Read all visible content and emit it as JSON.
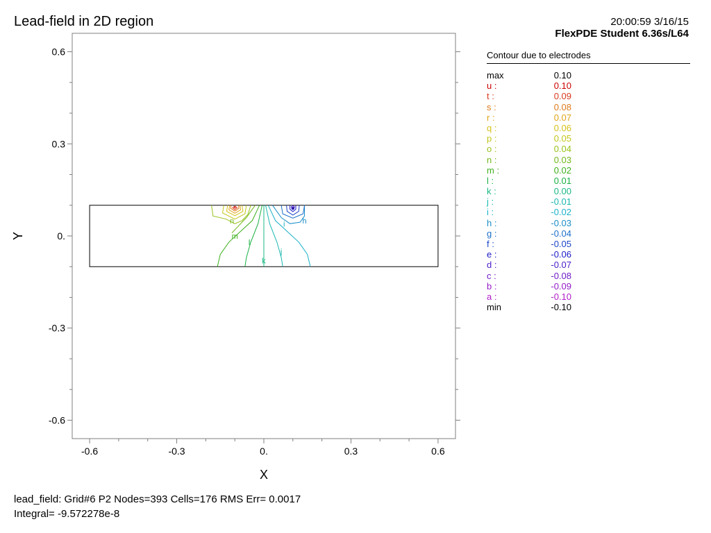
{
  "header": {
    "title": "Lead-field in 2D region",
    "timestamp": "20:00:59 3/16/15",
    "software": "FlexPDE Student 6.36s/L64"
  },
  "legend": {
    "title": "Contour due to electrodes",
    "rows": [
      {
        "label": "max",
        "value": "0.10",
        "color": "#000000"
      },
      {
        "label": "u :",
        "value": "0.10",
        "color": "#cc0000"
      },
      {
        "label": "t :",
        "value": "0.09",
        "color": "#d83a1e"
      },
      {
        "label": "s :",
        "value": "0.08",
        "color": "#dd7a1a"
      },
      {
        "label": "r :",
        "value": "0.07",
        "color": "#e0a419"
      },
      {
        "label": "q :",
        "value": "0.06",
        "color": "#d4c21a"
      },
      {
        "label": "p :",
        "value": "0.05",
        "color": "#c2c61a"
      },
      {
        "label": "o :",
        "value": "0.04",
        "color": "#98c21a"
      },
      {
        "label": "n :",
        "value": "0.03",
        "color": "#72b81a"
      },
      {
        "label": "m :",
        "value": "0.02",
        "color": "#3cb01c"
      },
      {
        "label": "l :",
        "value": "0.01",
        "color": "#18b040"
      },
      {
        "label": "k :",
        "value": "0.00",
        "color": "#1ab884"
      },
      {
        "label": "j :",
        "value": "-0.01",
        "color": "#1ab8b0"
      },
      {
        "label": "i :",
        "value": "-0.02",
        "color": "#1ab0c8"
      },
      {
        "label": "h :",
        "value": "-0.03",
        "color": "#1a8ec8"
      },
      {
        "label": "g :",
        "value": "-0.04",
        "color": "#1a6ec8"
      },
      {
        "label": "f :",
        "value": "-0.05",
        "color": "#1a44c8"
      },
      {
        "label": "e :",
        "value": "-0.06",
        "color": "#1a1ac8"
      },
      {
        "label": "d :",
        "value": "-0.07",
        "color": "#4a1ac8"
      },
      {
        "label": "c :",
        "value": "-0.08",
        "color": "#6e1ac8"
      },
      {
        "label": "b :",
        "value": "-0.09",
        "color": "#941ac8"
      },
      {
        "label": "a :",
        "value": "-0.10",
        "color": "#b01ac8"
      },
      {
        "label": "min",
        "value": "-0.10",
        "color": "#000000"
      }
    ]
  },
  "footer": {
    "line1": "lead_field:  Grid#6  P2  Nodes=393 Cells=176 RMS Err= 0.0017",
    "line2": "Integral= -9.572278e-8"
  },
  "chart_data": {
    "type": "contour",
    "xlabel": "X",
    "ylabel": "Y",
    "xlim": [
      -0.66,
      0.66
    ],
    "ylim": [
      -0.66,
      0.66
    ],
    "xticks": [
      -0.6,
      -0.3,
      0.0,
      0.3,
      0.6
    ],
    "yticks": [
      0.6,
      0.3,
      0.0,
      -0.3,
      -0.6
    ],
    "xtick_labels": [
      "-0.6",
      "-0.3",
      "0.",
      "0.3",
      "0.6"
    ],
    "ytick_labels": [
      "0.6",
      "0.3",
      "0.",
      "-0.3",
      "-0.6"
    ],
    "domain_rect": {
      "x": [
        -0.6,
        0.6
      ],
      "y": [
        -0.1,
        0.1
      ]
    },
    "sources": [
      {
        "x": -0.1,
        "y": 0.09,
        "sign": "positive",
        "value": 0.1
      },
      {
        "x": 0.1,
        "y": 0.09,
        "sign": "negative",
        "value": -0.1
      }
    ],
    "contours": [
      {
        "level": "t",
        "value": 0.09,
        "color": "#d83a1e",
        "points": [
          [
            -0.108,
            0.092
          ],
          [
            -0.1,
            0.097
          ],
          [
            -0.092,
            0.092
          ],
          [
            -0.1,
            0.086
          ],
          [
            -0.108,
            0.092
          ]
        ]
      },
      {
        "level": "s",
        "value": 0.08,
        "color": "#dd7a1a",
        "points": [
          [
            -0.113,
            0.1
          ],
          [
            -0.114,
            0.09
          ],
          [
            -0.1,
            0.081
          ],
          [
            -0.086,
            0.09
          ],
          [
            -0.087,
            0.1
          ]
        ]
      },
      {
        "level": "r",
        "value": 0.07,
        "color": "#e0a419",
        "points": [
          [
            -0.118,
            0.1
          ],
          [
            -0.12,
            0.085
          ],
          [
            -0.1,
            0.074
          ],
          [
            -0.08,
            0.085
          ],
          [
            -0.082,
            0.1
          ]
        ]
      },
      {
        "level": "q",
        "value": 0.06,
        "color": "#d4c21a",
        "points": [
          [
            -0.125,
            0.1
          ],
          [
            -0.128,
            0.08
          ],
          [
            -0.1,
            0.066
          ],
          [
            -0.072,
            0.08
          ],
          [
            -0.075,
            0.1
          ]
        ]
      },
      {
        "level": "p",
        "value": 0.05,
        "color": "#c2c61a",
        "points": [
          [
            -0.138,
            0.1
          ],
          [
            -0.142,
            0.075
          ],
          [
            -0.1,
            0.055
          ],
          [
            -0.065,
            0.072
          ],
          [
            -0.06,
            0.1
          ]
        ]
      },
      {
        "level": "o",
        "value": 0.04,
        "color": "#98c21a",
        "points": [
          [
            -0.18,
            0.1
          ],
          [
            -0.175,
            0.065
          ],
          [
            -0.13,
            0.055
          ],
          [
            -0.1,
            0.04
          ],
          [
            -0.075,
            0.05
          ],
          [
            -0.055,
            0.07
          ],
          [
            -0.045,
            0.1
          ]
        ]
      },
      {
        "level": "n",
        "value": 0.03,
        "color": "#72b81a",
        "points": [
          [
            -0.03,
            0.1
          ],
          [
            -0.06,
            0.06
          ],
          [
            -0.09,
            0.03
          ],
          [
            -0.11,
            0.01
          ]
        ]
      },
      {
        "level": "m",
        "value": 0.02,
        "color": "#3cb01c",
        "points": [
          [
            -0.015,
            0.1
          ],
          [
            -0.04,
            0.05
          ],
          [
            -0.08,
            0.015
          ],
          [
            -0.12,
            -0.02
          ],
          [
            -0.15,
            -0.06
          ],
          [
            -0.16,
            -0.1
          ]
        ]
      },
      {
        "level": "l",
        "value": 0.01,
        "color": "#18b040",
        "points": [
          [
            -0.006,
            0.1
          ],
          [
            -0.02,
            0.04
          ],
          [
            -0.045,
            -0.02
          ],
          [
            -0.06,
            -0.07
          ],
          [
            -0.065,
            -0.1
          ]
        ]
      },
      {
        "level": "k",
        "value": 0.0,
        "color": "#1ab884",
        "points": [
          [
            0.0,
            0.1
          ],
          [
            0.0,
            -0.1
          ]
        ]
      },
      {
        "level": "j",
        "value": -0.01,
        "color": "#1ab8b0",
        "points": [
          [
            0.006,
            0.1
          ],
          [
            0.02,
            0.04
          ],
          [
            0.045,
            -0.02
          ],
          [
            0.06,
            -0.07
          ],
          [
            0.065,
            -0.1
          ]
        ]
      },
      {
        "level": "i",
        "value": -0.02,
        "color": "#1ab0c8",
        "points": [
          [
            0.015,
            0.1
          ],
          [
            0.04,
            0.05
          ],
          [
            0.08,
            0.015
          ],
          [
            0.12,
            -0.02
          ],
          [
            0.15,
            -0.06
          ],
          [
            0.16,
            -0.1
          ]
        ]
      },
      {
        "level": "h",
        "value": -0.03,
        "color": "#1a8ec8",
        "points": [
          [
            0.03,
            0.1
          ],
          [
            0.06,
            0.06
          ],
          [
            0.09,
            0.04
          ],
          [
            0.125,
            0.045
          ],
          [
            0.14,
            0.065
          ],
          [
            0.14,
            0.1
          ]
        ]
      },
      {
        "level": "g",
        "value": -0.04,
        "color": "#1a6ec8",
        "points": [
          [
            0.06,
            0.1
          ],
          [
            0.065,
            0.072
          ],
          [
            0.1,
            0.058
          ],
          [
            0.135,
            0.072
          ],
          [
            0.14,
            0.1
          ]
        ]
      },
      {
        "level": "f",
        "value": -0.05,
        "color": "#1a44c8",
        "points": [
          [
            0.078,
            0.1
          ],
          [
            0.08,
            0.08
          ],
          [
            0.1,
            0.068
          ],
          [
            0.12,
            0.08
          ],
          [
            0.122,
            0.1
          ]
        ]
      },
      {
        "level": "e",
        "value": -0.06,
        "color": "#1a1ac8",
        "points": [
          [
            0.09,
            0.1
          ],
          [
            0.09,
            0.087
          ],
          [
            0.1,
            0.079
          ],
          [
            0.11,
            0.087
          ],
          [
            0.11,
            0.1
          ]
        ]
      },
      {
        "level": "d",
        "value": -0.07,
        "color": "#4a1ac8",
        "points": [
          [
            0.094,
            0.094
          ],
          [
            0.1,
            0.099
          ],
          [
            0.106,
            0.094
          ],
          [
            0.1,
            0.089
          ],
          [
            0.094,
            0.094
          ]
        ]
      }
    ],
    "contour_labels": [
      {
        "text": "n",
        "x": -0.11,
        "y": 0.05,
        "color": "#72b81a"
      },
      {
        "text": "m",
        "x": -0.1,
        "y": 0.0,
        "color": "#3cb01c"
      },
      {
        "text": "l",
        "x": -0.05,
        "y": -0.02,
        "color": "#18b040"
      },
      {
        "text": "k",
        "x": 0.0,
        "y": -0.08,
        "color": "#1ab884"
      },
      {
        "text": "j",
        "x": 0.06,
        "y": -0.05,
        "color": "#1ab8b0"
      },
      {
        "text": "i",
        "x": 0.07,
        "y": 0.04,
        "color": "#1ab0c8"
      },
      {
        "text": "h",
        "x": 0.14,
        "y": 0.05,
        "color": "#1a8ec8"
      }
    ]
  }
}
